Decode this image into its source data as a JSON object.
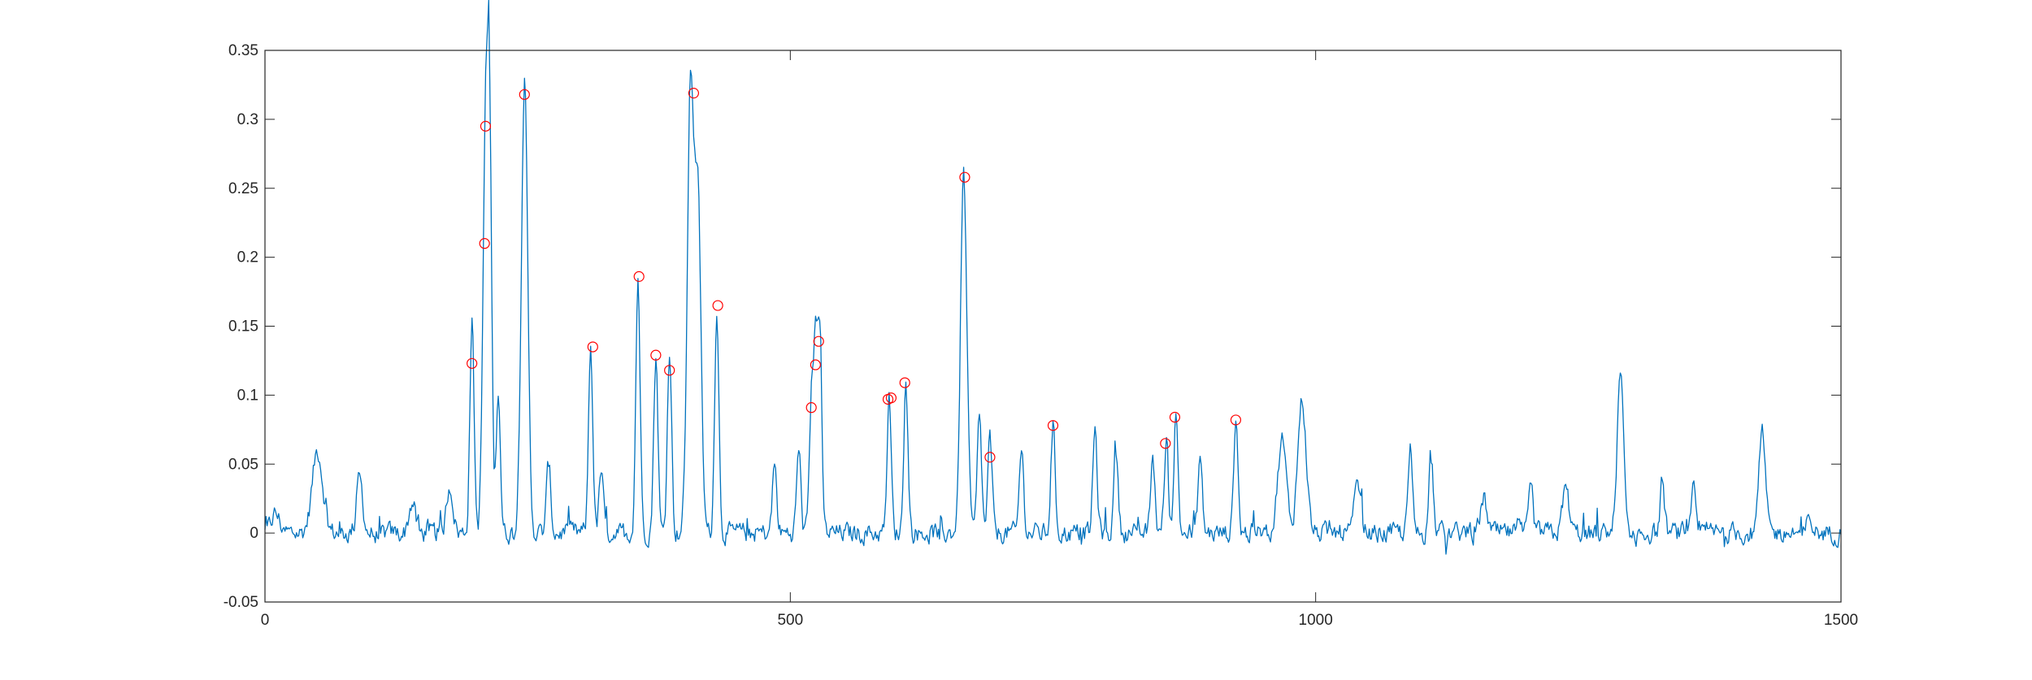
{
  "chart_data": {
    "type": "line",
    "title": "",
    "xlabel": "",
    "ylabel": "",
    "xlim": [
      0,
      1500
    ],
    "ylim": [
      -0.05,
      0.35
    ],
    "grid": false,
    "legend": "none",
    "x_ticks": [
      0,
      500,
      1000,
      1500
    ],
    "x_tick_labels": [
      "0",
      "500",
      "1000",
      "1500"
    ],
    "y_ticks": [
      -0.05,
      0,
      0.05,
      0.1,
      0.15,
      0.2,
      0.25,
      0.3,
      0.35
    ],
    "y_tick_labels": [
      "-0.05",
      "0",
      "0.05",
      "0.1",
      "0.15",
      "0.2",
      "0.25",
      "0.3",
      "0.35"
    ],
    "series": [
      {
        "color": "#0072BD",
        "x_start": 0,
        "x_end": 1500,
        "baseline_noise": 0.006,
        "peaks": [
          [
            10,
            0.014,
            4
          ],
          [
            50,
            0.06,
            5
          ],
          [
            90,
            0.04,
            3
          ],
          [
            140,
            0.022,
            3
          ],
          [
            176,
            0.035,
            3
          ],
          [
            197,
            0.155,
            2
          ],
          [
            210,
            0.295,
            2.5
          ],
          [
            214,
            0.248,
            2
          ],
          [
            222,
            0.105,
            2
          ],
          [
            247,
            0.328,
            3
          ],
          [
            270,
            0.05,
            2
          ],
          [
            310,
            0.135,
            2
          ],
          [
            320,
            0.045,
            2
          ],
          [
            355,
            0.185,
            2
          ],
          [
            372,
            0.129,
            2
          ],
          [
            385,
            0.135,
            2
          ],
          [
            405,
            0.32,
            3
          ],
          [
            412,
            0.24,
            3
          ],
          [
            430,
            0.165,
            2
          ],
          [
            485,
            0.05,
            2
          ],
          [
            508,
            0.06,
            2
          ],
          [
            520,
            0.09,
            2
          ],
          [
            524,
            0.122,
            2
          ],
          [
            528,
            0.139,
            2
          ],
          [
            594,
            0.097,
            2
          ],
          [
            610,
            0.109,
            2
          ],
          [
            665,
            0.26,
            3
          ],
          [
            680,
            0.085,
            2
          ],
          [
            690,
            0.068,
            2
          ],
          [
            720,
            0.062,
            2
          ],
          [
            750,
            0.078,
            2
          ],
          [
            790,
            0.075,
            2
          ],
          [
            810,
            0.06,
            2
          ],
          [
            845,
            0.055,
            2
          ],
          [
            858,
            0.065,
            2
          ],
          [
            867,
            0.084,
            2
          ],
          [
            890,
            0.055,
            2
          ],
          [
            924,
            0.083,
            2
          ],
          [
            968,
            0.068,
            4
          ],
          [
            987,
            0.097,
            4
          ],
          [
            1040,
            0.035,
            3
          ],
          [
            1090,
            0.06,
            2
          ],
          [
            1110,
            0.063,
            2
          ],
          [
            1160,
            0.025,
            3
          ],
          [
            1205,
            0.032,
            2
          ],
          [
            1238,
            0.033,
            3
          ],
          [
            1290,
            0.115,
            3
          ],
          [
            1330,
            0.038,
            2
          ],
          [
            1360,
            0.03,
            2
          ],
          [
            1425,
            0.072,
            3
          ],
          [
            1470,
            0.008,
            3
          ]
        ]
      }
    ],
    "marker_color": "#FF0000",
    "markers": [
      [
        197,
        0.123
      ],
      [
        209,
        0.21
      ],
      [
        210,
        0.295
      ],
      [
        247,
        0.318
      ],
      [
        312,
        0.135
      ],
      [
        356,
        0.186
      ],
      [
        372,
        0.129
      ],
      [
        385,
        0.118
      ],
      [
        408,
        0.319
      ],
      [
        431,
        0.165
      ],
      [
        520,
        0.091
      ],
      [
        524,
        0.122
      ],
      [
        527,
        0.139
      ],
      [
        593,
        0.097
      ],
      [
        596,
        0.098
      ],
      [
        609,
        0.109
      ],
      [
        666,
        0.258
      ],
      [
        690,
        0.055
      ],
      [
        750,
        0.078
      ],
      [
        857,
        0.065
      ],
      [
        866,
        0.084
      ],
      [
        924,
        0.082
      ]
    ]
  }
}
